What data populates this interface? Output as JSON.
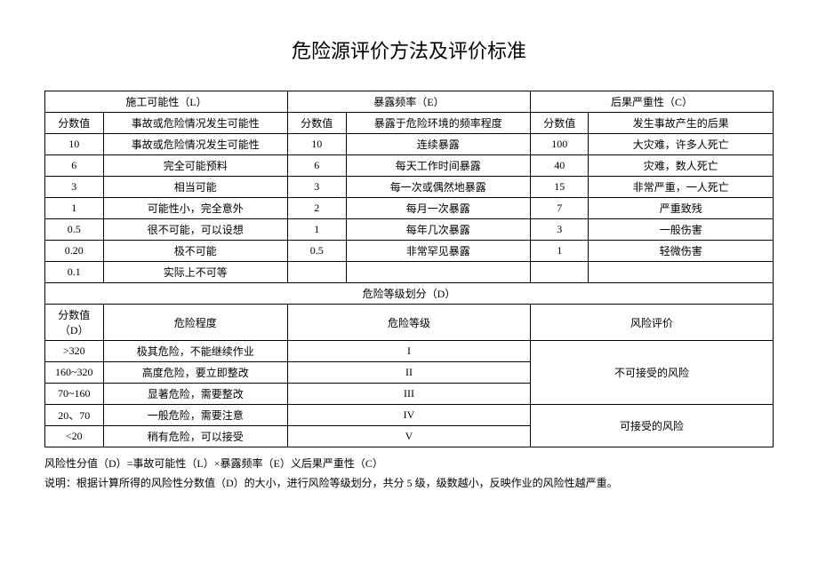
{
  "title": "危险源评价方法及评价标准",
  "table1": {
    "headers": {
      "h1": "施工可能性（L）",
      "h2": "暴露频率（E）",
      "h3": "后果严重性（C）",
      "sh1": "分数值",
      "sh2": "事故或危险情况发生可能性",
      "sh3": "分数值",
      "sh4": "暴露于危险环境的频率程度",
      "sh5": "分数值",
      "sh6": "发生事故产生的后果"
    },
    "rows": [
      {
        "c1": "10",
        "c2": "事故或危险情况发生可能性",
        "c3": "10",
        "c4": "连续暴露",
        "c5": "100",
        "c6": "大灾难，许多人死亡"
      },
      {
        "c1": "6",
        "c2": "完全可能预料",
        "c3": "6",
        "c4": "每天工作时间暴露",
        "c5": "40",
        "c6": "灾难，数人死亡"
      },
      {
        "c1": "3",
        "c2": "相当可能",
        "c3": "3",
        "c4": "每一次或偶然地暴露",
        "c5": "15",
        "c6": "非常严重，一人死亡"
      },
      {
        "c1": "1",
        "c2": "可能性小，完全意外",
        "c3": "2",
        "c4": "每月一次暴露",
        "c5": "7",
        "c6": "严重致残"
      },
      {
        "c1": "0.5",
        "c2": "很不可能，可以设想",
        "c3": "1",
        "c4": "每年几次暴露",
        "c5": "3",
        "c6": "一般伤害"
      },
      {
        "c1": "0.20",
        "c2": "极不可能",
        "c3": "0.5",
        "c4": "非常罕见暴露",
        "c5": "1",
        "c6": "轻微伤害"
      },
      {
        "c1": "0.1",
        "c2": "实际上不可等",
        "c3": "",
        "c4": "",
        "c5": "",
        "c6": ""
      }
    ]
  },
  "table2": {
    "header": "危险等级划分（D）",
    "subheaders": {
      "sh1": "分数值（D）",
      "sh2": "危险程度",
      "sh3": "危险等级",
      "sh4": "风险评价"
    },
    "rows": [
      {
        "c1": ">320",
        "c2": "极其危险，不能继续作业",
        "c3": "I"
      },
      {
        "c1": "160~320",
        "c2": "高度危险，要立即整改",
        "c3": "II"
      },
      {
        "c1": "70~160",
        "c2": "显著危险，需要整改",
        "c3": "III"
      },
      {
        "c1": "20、70",
        "c2": "一般危险，需要注意",
        "c3": "IV"
      },
      {
        "c1": "<20",
        "c2": "稍有危险，可以接受",
        "c3": "V"
      }
    ],
    "eval1": "不可接受的风险",
    "eval2": "可接受的风险"
  },
  "notes": {
    "line1": "风险性分值（D）=事故可能性（L）×暴露频率（E）义后果严重性（C）",
    "line2": "说明：根据计算所得的风险性分数值（D）的大小，进行风险等级划分，共分 5 级，级数越小，反映作业的风险性越严重。"
  }
}
